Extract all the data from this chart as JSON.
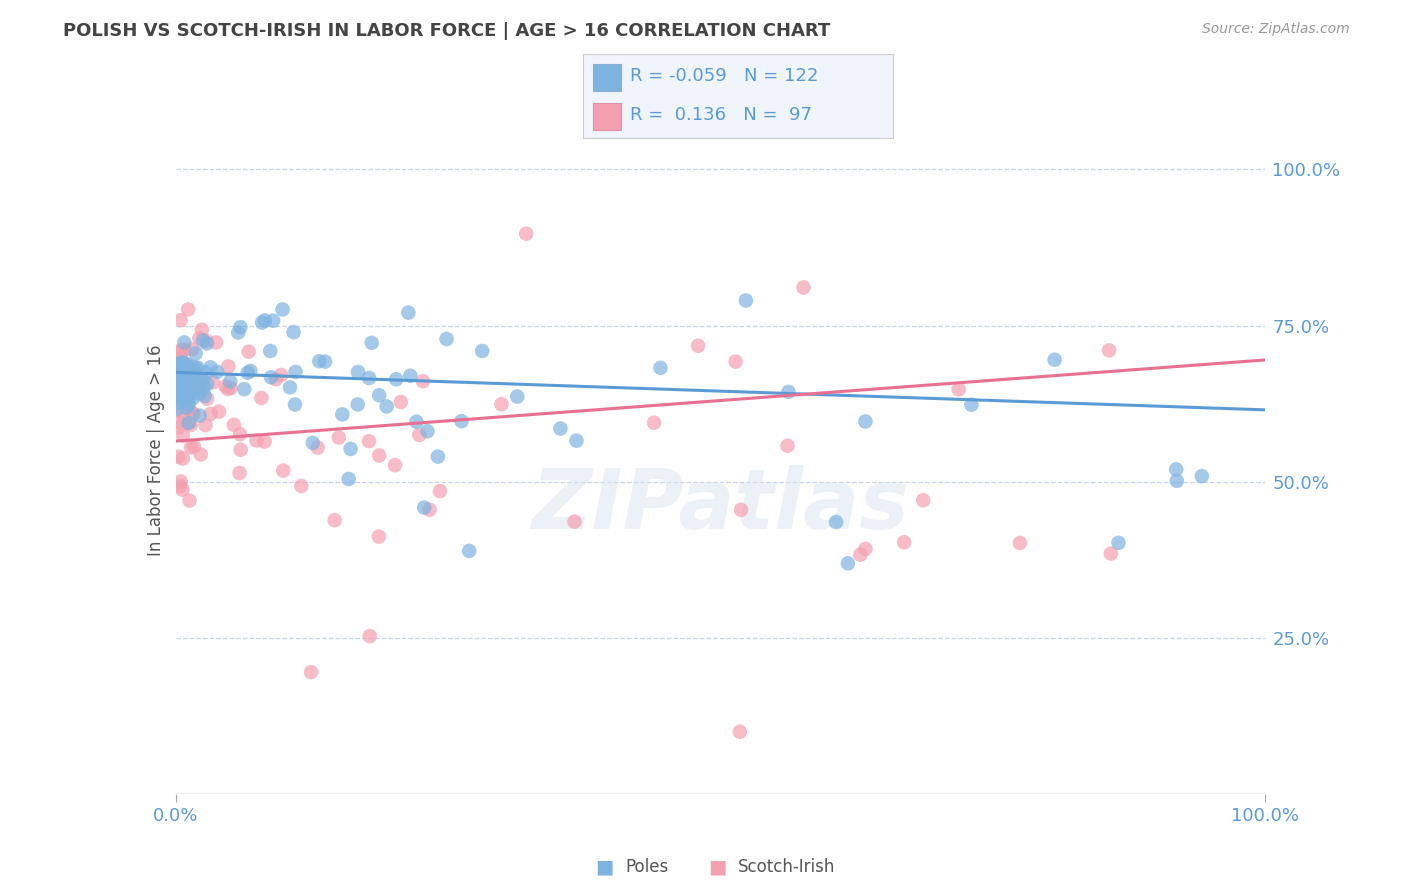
{
  "title": "POLISH VS SCOTCH-IRISH IN LABOR FORCE | AGE > 16 CORRELATION CHART",
  "source_text": "Source: ZipAtlas.com",
  "ylabel": "In Labor Force | Age > 16",
  "xlim": [
    0.0,
    1.0
  ],
  "ylim": [
    0.0,
    1.1
  ],
  "xtick_labels": [
    "0.0%",
    "100.0%"
  ],
  "ytick_labels": [
    "25.0%",
    "50.0%",
    "75.0%",
    "100.0%"
  ],
  "ytick_positions": [
    0.25,
    0.5,
    0.75,
    1.0
  ],
  "poles_color": "#7eb3e0",
  "scotch_color": "#f4a0b0",
  "poles_line_color": "#5b9bd5",
  "scotch_line_color": "#e87090",
  "axis_label_color": "#5b9bd5",
  "R_poles": -0.059,
  "N_poles": 122,
  "R_scotch": 0.136,
  "N_scotch": 97,
  "watermark": "ZIPatlas",
  "background_color": "#ffffff",
  "grid_color": "#c8d4e8",
  "poles_trend_start": 0.675,
  "poles_trend_end": 0.615,
  "scotch_trend_start": 0.565,
  "scotch_trend_end": 0.695
}
